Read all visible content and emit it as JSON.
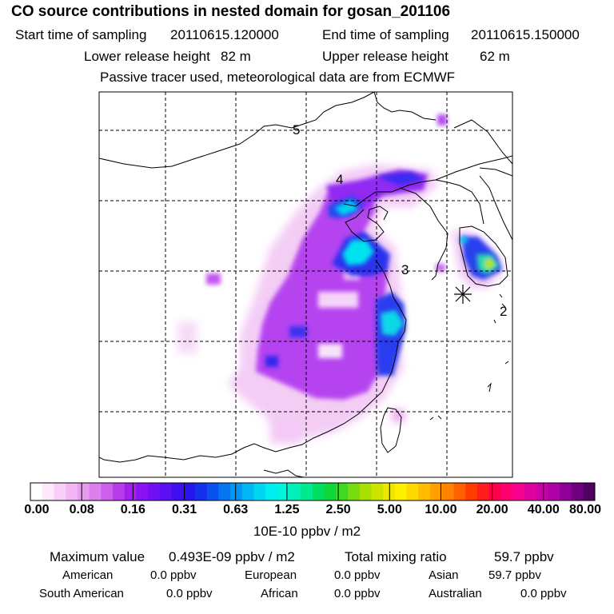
{
  "header": {
    "title": "CO  source contributions in nested domain for gosan_201106",
    "start_label": "Start time of sampling",
    "start_value": "20110615.120000",
    "end_label": "End time of sampling",
    "end_value": "20110615.150000",
    "lower_label": "Lower release height",
    "lower_value": "82 m",
    "upper_label": "Upper release height",
    "upper_value": "62 m",
    "note": "Passive tracer used, meteorological data are from ECMWF"
  },
  "map": {
    "day_labels": [
      "5",
      "4",
      "3",
      "2"
    ],
    "receptor": "gosan",
    "receptor_marker": "asterisk"
  },
  "colorbar": {
    "ticks": [
      "0.00",
      "0.08",
      "0.16",
      "0.31",
      "0.63",
      "1.25",
      "2.50",
      "5.00",
      "10.00",
      "20.00",
      "40.00",
      "80.00"
    ],
    "unit": "10E-10 ppbv / m2",
    "colors": [
      "#ffffff",
      "#fde8fd",
      "#f8cff8",
      "#f2b6f4",
      "#e89cf0",
      "#dc80ee",
      "#cc5fec",
      "#b93ceb",
      "#a21ff0",
      "#8a12f4",
      "#7210f5",
      "#5a10f3",
      "#3f0ff0",
      "#2a14ee",
      "#1530ec",
      "#0a52ee",
      "#0575f0",
      "#0296f2",
      "#00b8f4",
      "#00d6f3",
      "#00eef0",
      "#00f5dc",
      "#00f0b8",
      "#00e890",
      "#00de60",
      "#10d63a",
      "#40d820",
      "#78dc10",
      "#a8e000",
      "#cde400",
      "#ede800",
      "#fff000",
      "#ffd800",
      "#ffbc00",
      "#ffa000",
      "#ff8200",
      "#ff6000",
      "#ff3c00",
      "#ff1c1c",
      "#ff0048",
      "#ff0070",
      "#f50090",
      "#e000a0",
      "#cc00a8",
      "#b000a8",
      "#900098",
      "#700080",
      "#500060"
    ]
  },
  "stats": {
    "max_label": "Maximum value",
    "max_value": "0.493E-09 ppbv / m2",
    "total_label": "Total mixing ratio",
    "total_value": "59.7 ppbv",
    "regions": [
      {
        "name": "American",
        "value": "0.0 ppbv"
      },
      {
        "name": "European",
        "value": "0.0 ppbv"
      },
      {
        "name": "Asian",
        "value": "59.7 ppbv"
      },
      {
        "name": "South American",
        "value": "0.0 ppbv"
      },
      {
        "name": "African",
        "value": "0.0 ppbv"
      },
      {
        "name": "Australian",
        "value": "0.0 ppbv"
      }
    ]
  }
}
